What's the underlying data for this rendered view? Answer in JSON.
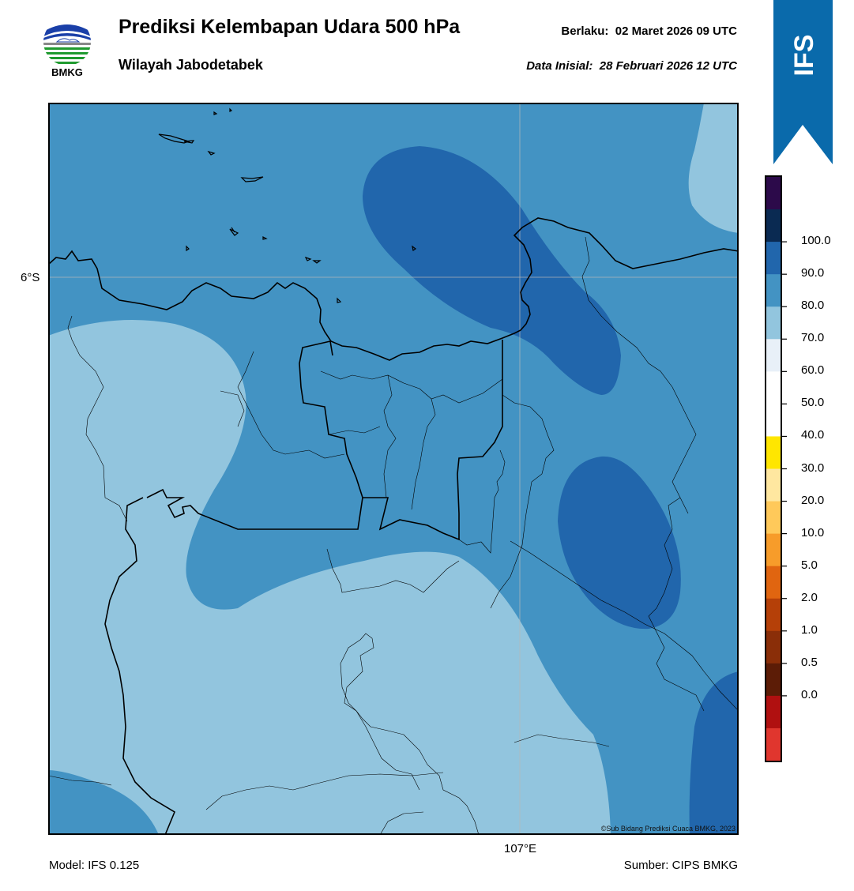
{
  "header": {
    "title": "Prediksi Kelembapan Udara 500 hPa",
    "subtitle": "Wilayah Jabodetabek",
    "valid_label": "Berlaku:",
    "valid_time": "02 Maret 2026 09 UTC",
    "init_label": "Data Inisial:",
    "init_time": "28 Februari 2026 12 UTC"
  },
  "logo": {
    "icon": "bmkg-logo-icon",
    "text": "BMKG"
  },
  "ribbon": {
    "text": "IFS",
    "color": "#0a6aab"
  },
  "map": {
    "lat_label": "6°S",
    "lon_label": "107°E",
    "copyright": "©Sub Bidang Prediksi Cuaca BMKG, 2023"
  },
  "footer": {
    "model": "Model: IFS 0.125",
    "source": "Sumber: CIPS BMKG"
  },
  "colorbar": {
    "labels": [
      "100.0",
      "90.0",
      "80.0",
      "70.0",
      "60.0",
      "50.0",
      "40.0",
      "30.0",
      "20.0",
      "10.0",
      "5.0",
      "2.0",
      "1.0",
      "0.5",
      "0.0"
    ],
    "colors_top_to_bottom": [
      "#2c0a4a",
      "#0a2a52",
      "#2166ac",
      "#4393c3",
      "#92c5de",
      "#e8f0f8",
      "#ffffff",
      "#ffffff",
      "#ffe600",
      "#ffe7a0",
      "#ffc95a",
      "#f79c2a",
      "#e06510",
      "#b54008",
      "#8a2e08",
      "#5c1c06",
      "#b01010",
      "#e0362e"
    ]
  },
  "field_colors": {
    "60-70": "#92c5de",
    "70-80": "#4393c3",
    "80-90": "#2166ac"
  }
}
